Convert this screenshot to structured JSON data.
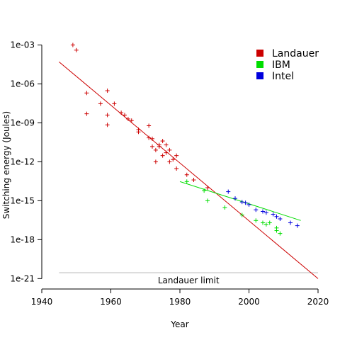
{
  "chart_data": {
    "type": "scatter",
    "title": "",
    "xlabel": "Year",
    "ylabel": "Switching energy (Joules)",
    "xlim": [
      1940,
      2020
    ],
    "ylim_log10": [
      -21.8,
      -2.7
    ],
    "log_scale_y": true,
    "grid": false,
    "legend_position": "top-right",
    "x_ticks": [
      {
        "value": 1940,
        "label": "1940"
      },
      {
        "value": 1960,
        "label": "1960"
      },
      {
        "value": 1980,
        "label": "1980"
      },
      {
        "value": 2000,
        "label": "2000"
      },
      {
        "value": 2020,
        "label": "2020"
      }
    ],
    "y_ticks": [
      {
        "value": 0.001,
        "label": "1e-03"
      },
      {
        "value": 1e-06,
        "label": "1e-06"
      },
      {
        "value": 1e-09,
        "label": "1e-09"
      },
      {
        "value": 1e-12,
        "label": "1e-12"
      },
      {
        "value": 1e-15,
        "label": "1e-15"
      },
      {
        "value": 1e-18,
        "label": "1e-18"
      },
      {
        "value": 1e-21,
        "label": "1e-21"
      }
    ],
    "series": [
      {
        "name": "Landauer",
        "color": "#cc0000",
        "marker": "+",
        "points": [
          [
            1949,
            0.001
          ],
          [
            1950,
            0.0004
          ],
          [
            1953,
            2e-07
          ],
          [
            1953,
            5e-09
          ],
          [
            1957,
            3e-08
          ],
          [
            1959,
            3e-07
          ],
          [
            1959,
            4e-09
          ],
          [
            1959,
            7e-10
          ],
          [
            1961,
            3e-08
          ],
          [
            1963,
            6e-09
          ],
          [
            1964,
            4e-09
          ],
          [
            1965,
            2e-09
          ],
          [
            1966,
            1.5e-09
          ],
          [
            1968,
            3e-10
          ],
          [
            1968,
            2e-10
          ],
          [
            1971,
            6e-10
          ],
          [
            1971,
            7e-11
          ],
          [
            1972,
            6e-11
          ],
          [
            1972,
            1.5e-11
          ],
          [
            1973,
            8e-12
          ],
          [
            1973,
            1e-12
          ],
          [
            1974,
            2e-11
          ],
          [
            1974,
            1.5e-11
          ],
          [
            1975,
            4e-11
          ],
          [
            1975,
            3e-12
          ],
          [
            1976,
            2e-11
          ],
          [
            1976,
            5e-12
          ],
          [
            1977,
            8e-12
          ],
          [
            1977,
            1e-12
          ],
          [
            1978,
            1.5e-12
          ],
          [
            1979,
            3e-13
          ],
          [
            1979,
            3e-12
          ],
          [
            1982,
            1e-13
          ],
          [
            1984,
            4e-14
          ],
          [
            1988,
            1e-14
          ]
        ],
        "trend": {
          "x": [
            1945,
            2020
          ],
          "y": [
            5e-05,
            1e-21
          ]
        }
      },
      {
        "name": "IBM",
        "color": "#00dd00",
        "marker": "+",
        "points": [
          [
            1982,
            3e-14
          ],
          [
            1987,
            6e-15
          ],
          [
            1988,
            1e-15
          ],
          [
            1993,
            3e-16
          ],
          [
            1998,
            8e-17
          ],
          [
            2002,
            3e-17
          ],
          [
            2004,
            2e-17
          ],
          [
            2005,
            1.5e-17
          ],
          [
            2006,
            2e-17
          ],
          [
            2008,
            5e-18
          ],
          [
            2008,
            8e-18
          ],
          [
            2009,
            3e-18
          ]
        ],
        "trend": {
          "x": [
            1980,
            2015
          ],
          "y": [
            3e-14,
            3e-17
          ]
        }
      },
      {
        "name": "Intel",
        "color": "#0000dd",
        "marker": "+",
        "points": [
          [
            1994,
            5e-15
          ],
          [
            1996,
            1.5e-15
          ],
          [
            1998,
            8e-16
          ],
          [
            1999,
            7e-16
          ],
          [
            2000,
            5e-16
          ],
          [
            2002,
            2e-16
          ],
          [
            2004,
            1.5e-16
          ],
          [
            2005,
            1.2e-16
          ],
          [
            2007,
            9e-17
          ],
          [
            2008,
            6e-17
          ],
          [
            2009,
            4e-17
          ],
          [
            2012,
            2e-17
          ],
          [
            2014,
            1.2e-17
          ]
        ]
      }
    ],
    "reference_line": {
      "label": "Landauer limit",
      "value": 2.87e-21,
      "x": [
        1945,
        2020
      ],
      "color": "#bbbbbb"
    }
  }
}
